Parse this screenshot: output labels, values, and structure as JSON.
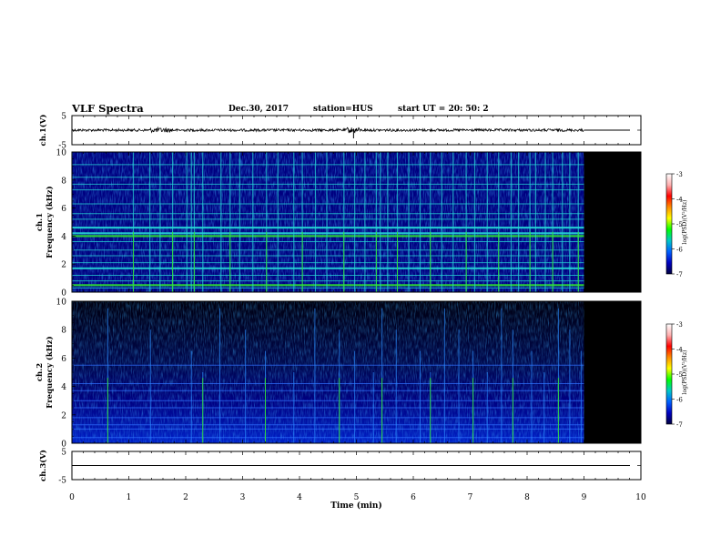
{
  "header": {
    "title": "VLF Spectra",
    "date": "Dec.30, 2017",
    "station": "station=HUS",
    "start": "start  UT  =   20: 50: 2"
  },
  "colors": {
    "background": "#000000",
    "spectrum_low": "#000080",
    "spectrum_mid": "#0a3ad8",
    "line_cyan": "#26d6d6",
    "line_green": "#30e030",
    "waveform": "#000000",
    "colorbar": [
      "#ffffff",
      "#ffb0b0",
      "#ff0000",
      "#ff8c00",
      "#ffff00",
      "#00ff00",
      "#00c8c8",
      "#0060ff",
      "#0000c0",
      "#000040"
    ]
  },
  "chart_data": [
    {
      "type": "line",
      "name": "ch1-waveform",
      "ylabel": "ch.1(V)",
      "ylim": [
        -5,
        5
      ],
      "yticks": [
        "5",
        "-5"
      ],
      "xlim": [
        0,
        10
      ],
      "data_end_min": 9.0,
      "baseline": 0
    },
    {
      "type": "heatmap",
      "name": "ch1-spectrogram",
      "ylabel": [
        "ch.1",
        "Frequency  (kHz)"
      ],
      "xlim": [
        0,
        10
      ],
      "ylim": [
        0,
        10
      ],
      "yticks": [
        "0",
        "2",
        "4",
        "6",
        "8",
        "10"
      ],
      "data_end_min": 9.0,
      "colorbar": {
        "label": "log(PSD)(V²/Hz)",
        "ticks": [
          "-3",
          "-4",
          "-5",
          "-6",
          "-7"
        ],
        "range": [
          -7,
          -3
        ]
      },
      "strong_bands_khz": [
        0.5,
        1.7,
        4.0,
        4.2,
        4.6
      ],
      "lines_khz": [
        0.3,
        0.8,
        1.2,
        2.1,
        2.6,
        3.0,
        3.6,
        5.2,
        5.6,
        6.3,
        7.3,
        7.7,
        8.2,
        9.1
      ],
      "vertical_events_min": [
        1.08,
        1.37,
        1.55,
        1.77,
        2.02,
        2.1,
        2.15,
        2.3,
        2.62,
        2.78,
        2.95,
        3.18,
        3.42,
        3.62,
        3.9,
        4.05,
        4.28,
        4.48,
        4.78,
        4.97,
        5.15,
        5.35,
        5.42,
        5.55,
        5.72,
        5.92,
        6.12,
        6.3,
        6.5,
        6.7,
        6.93,
        7.08,
        7.3,
        7.5,
        7.72,
        7.85,
        8.05,
        8.15,
        8.32,
        8.45,
        8.62,
        8.75,
        8.9
      ]
    },
    {
      "type": "heatmap",
      "name": "ch2-spectrogram",
      "ylabel": [
        "ch.2",
        "Frequency  (kHz)"
      ],
      "xlim": [
        0,
        10
      ],
      "ylim": [
        0,
        10
      ],
      "yticks": [
        "0",
        "2",
        "4",
        "6",
        "8",
        "10"
      ],
      "data_end_min": 9.0,
      "colorbar": {
        "label": "log(PSD)(V²/Hz)",
        "ticks": [
          "-3",
          "-4",
          "-5",
          "-6",
          "-7"
        ],
        "range": [
          -7,
          -3
        ]
      },
      "lines_khz": [
        0.4,
        1.0,
        1.3,
        1.8,
        2.5,
        3.0,
        3.7,
        4.2,
        5.5
      ],
      "vertical_events_min": [
        0.63,
        1.38,
        2.1,
        2.3,
        2.6,
        3.05,
        3.4,
        3.9,
        4.27,
        4.7,
        4.97,
        5.3,
        5.45,
        5.7,
        6.12,
        6.3,
        6.55,
        6.8,
        7.05,
        7.3,
        7.55,
        7.75,
        8.08,
        8.3,
        8.55,
        8.75,
        8.95
      ]
    },
    {
      "type": "line",
      "name": "ch3-waveform",
      "ylabel": "ch.3(V)",
      "ylim": [
        -5,
        5
      ],
      "yticks": [
        "5",
        "-5"
      ],
      "xlim": [
        0,
        10
      ],
      "baseline": 0,
      "xlabel": "Time  (min)",
      "xticks": [
        "0",
        "1",
        "2",
        "3",
        "4",
        "5",
        "6",
        "7",
        "8",
        "9",
        "10"
      ]
    }
  ]
}
